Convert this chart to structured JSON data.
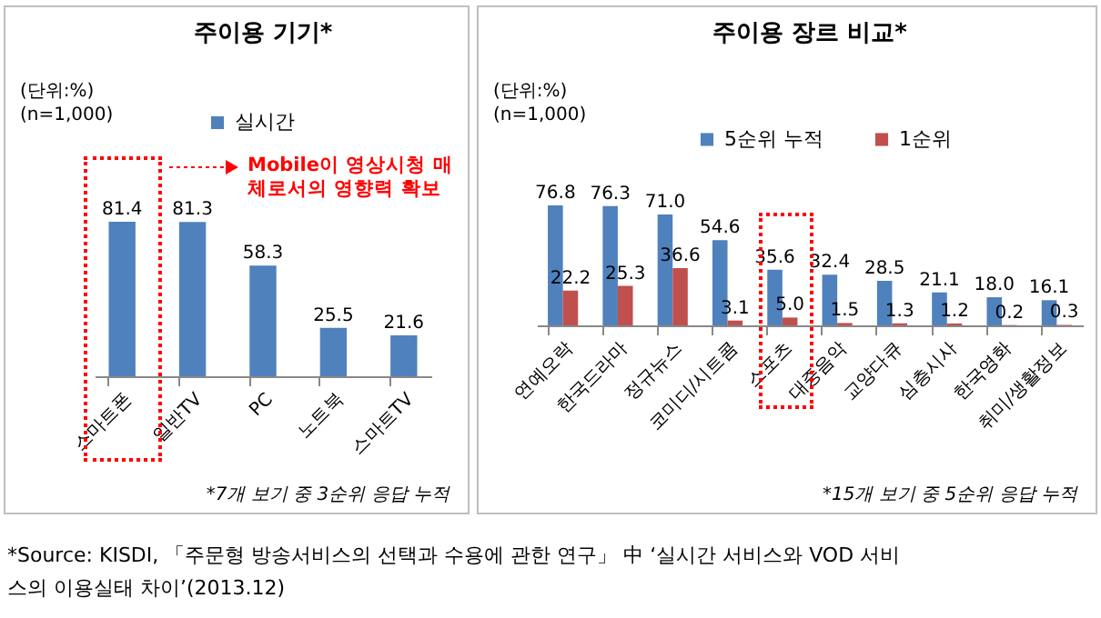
{
  "chart_data": [
    {
      "type": "bar",
      "title": "주이용 기기*",
      "categories": [
        "스마트폰",
        "일반TV",
        "PC",
        "노트북",
        "스마트TV"
      ],
      "series": [
        {
          "name": "실시간",
          "color": "#4f81bd",
          "values": [
            81.4,
            81.3,
            58.3,
            25.5,
            21.6
          ],
          "value_labels": [
            "81.4",
            "81.3",
            "58.3",
            "25.5",
            "21.6"
          ]
        }
      ],
      "legend": "top",
      "grid": false,
      "annotations": [
        "(단위:%)",
        "(n=1,000)",
        "*7개 보기 중 3순위 응답 누적",
        "Mobile이 영상시청 매체로서의 영향력 확보"
      ]
    },
    {
      "type": "bar",
      "title": "주이용 장르 비교*",
      "categories": [
        "연예오락",
        "한국드라마",
        "정규뉴스",
        "코미디/시트콤",
        "스포츠",
        "대중음악",
        "교양다큐",
        "심층시사",
        "한국영화",
        "취미/생활정보"
      ],
      "series": [
        {
          "name": "5순위 누적",
          "color": "#4f81bd",
          "values": [
            76.8,
            76.3,
            71.0,
            54.6,
            35.6,
            32.4,
            28.5,
            21.1,
            18.0,
            16.1
          ],
          "value_labels": [
            "76.8",
            "76.3",
            "71.0",
            "54.6",
            "35.6",
            "32.4",
            "28.5",
            "21.1",
            "18.0",
            "16.1"
          ]
        },
        {
          "name": "1순위",
          "color": "#c0504d",
          "values": [
            22.2,
            25.3,
            36.6,
            3.1,
            5.0,
            1.5,
            1.3,
            1.2,
            0.2,
            0.3
          ],
          "value_labels": [
            "22.2",
            "25.3",
            "36.6",
            "3.1",
            "5.0",
            "1.5",
            "1.3",
            "1.2",
            "0.2",
            "0.3"
          ]
        }
      ],
      "legend": "top",
      "grid": false,
      "annotations": [
        "(단위:%)",
        "(n=1,000)",
        "*15개 보기 중 5순위 응답 누적",
        "*Source: KISDI, 「주문형 방송서비스의 선택과 수용에 관한 연구」 中 ‘실시간 서비스와 VOD 서비스의 이용실태 차이’(2013.12)"
      ]
    }
  ]
}
